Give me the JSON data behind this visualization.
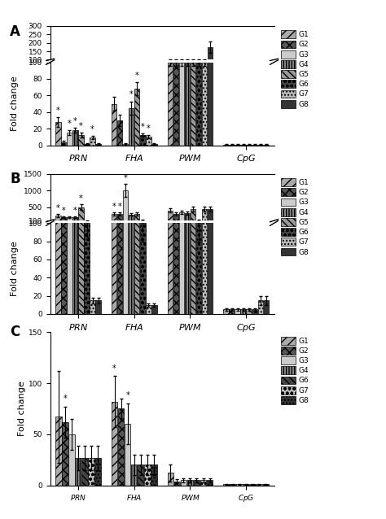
{
  "panel_A": {
    "stimuli": [
      "PRN",
      "FHA",
      "PWM",
      "CpG"
    ],
    "groups": [
      "G1",
      "G2",
      "G3",
      "G4",
      "G5",
      "G6",
      "G7",
      "G8"
    ],
    "values": {
      "PRN": [
        28,
        4,
        15,
        18,
        12,
        2,
        9,
        2
      ],
      "FHA": [
        50,
        30,
        2,
        45,
        68,
        12,
        10,
        2
      ],
      "PWM": [
        100,
        100,
        100,
        100,
        100,
        100,
        100,
        175
      ],
      "CpG": [
        1,
        1,
        1,
        1,
        1,
        1,
        1,
        1
      ]
    },
    "errors": {
      "PRN": [
        6,
        2,
        3,
        3,
        3,
        1,
        2,
        1
      ],
      "FHA": [
        8,
        7,
        1,
        8,
        8,
        2,
        2,
        1
      ],
      "PWM": [
        4,
        4,
        4,
        4,
        4,
        4,
        4,
        35
      ],
      "CpG": [
        0.5,
        0.5,
        0.5,
        0.5,
        0.5,
        0.5,
        0.5,
        0.5
      ]
    },
    "star": {
      "PRN": [
        1,
        0,
        1,
        1,
        1,
        0,
        1,
        0
      ],
      "FHA": [
        0,
        0,
        0,
        1,
        1,
        1,
        1,
        0
      ],
      "PWM": [
        0,
        0,
        0,
        0,
        0,
        0,
        0,
        0
      ],
      "CpG": [
        0,
        0,
        0,
        0,
        0,
        0,
        0,
        0
      ]
    },
    "ylim_low": [
      0,
      100
    ],
    "yticks_low": [
      0,
      20,
      40,
      60,
      80,
      100
    ],
    "ylim_high": [
      100,
      300
    ],
    "yticks_high": [
      100,
      150,
      200,
      250,
      300
    ]
  },
  "panel_B": {
    "stimuli": [
      "PRN",
      "FHA",
      "PWM",
      "CpG"
    ],
    "groups": [
      "G1",
      "G2",
      "G3",
      "G4",
      "G5",
      "G6",
      "G7",
      "G8"
    ],
    "values": {
      "PRN": [
        250,
        200,
        200,
        200,
        500,
        100,
        15,
        15
      ],
      "FHA": [
        300,
        300,
        1000,
        280,
        300,
        100,
        10,
        10
      ],
      "PWM": [
        400,
        300,
        350,
        330,
        450,
        100,
        450,
        450
      ],
      "CpG": [
        5,
        5,
        5,
        5,
        5,
        5,
        15,
        15
      ]
    },
    "errors": {
      "PRN": [
        40,
        30,
        30,
        30,
        80,
        15,
        3,
        3
      ],
      "FHA": [
        50,
        50,
        200,
        40,
        50,
        20,
        2,
        2
      ],
      "PWM": [
        60,
        50,
        50,
        50,
        70,
        20,
        70,
        70
      ],
      "CpG": [
        1,
        1,
        1,
        1,
        1,
        1,
        5,
        5
      ]
    },
    "star": {
      "PRN": [
        1,
        1,
        0,
        1,
        1,
        0,
        0,
        0
      ],
      "FHA": [
        1,
        1,
        1,
        0,
        0,
        0,
        0,
        0
      ],
      "PWM": [
        0,
        0,
        0,
        0,
        0,
        0,
        0,
        0
      ],
      "CpG": [
        0,
        0,
        0,
        0,
        0,
        0,
        0,
        0
      ]
    },
    "ylim_low": [
      0,
      100
    ],
    "yticks_low": [
      0,
      20,
      40,
      60,
      80,
      100
    ],
    "ylim_high": [
      100,
      1500
    ],
    "yticks_high": [
      100,
      500,
      1000,
      1500
    ]
  },
  "panel_C": {
    "stimuli": [
      "PRN",
      "FHA",
      "PWM",
      "CpG"
    ],
    "groups": [
      "G1",
      "G2",
      "G3",
      "G4",
      "G6",
      "G7",
      "G8"
    ],
    "values": {
      "PRN": [
        67,
        62,
        50,
        27,
        27,
        27,
        27
      ],
      "FHA": [
        82,
        75,
        60,
        20,
        20,
        20,
        20
      ],
      "PWM": [
        12,
        4,
        5,
        5,
        5,
        5,
        5
      ],
      "CpG": [
        1,
        1,
        1,
        1,
        1,
        1,
        1
      ]
    },
    "errors": {
      "PRN": [
        45,
        15,
        15,
        12,
        12,
        12,
        12
      ],
      "FHA": [
        25,
        10,
        20,
        10,
        10,
        10,
        10
      ],
      "PWM": [
        8,
        2,
        2,
        2,
        2,
        2,
        2
      ],
      "CpG": [
        0.5,
        0.5,
        0.5,
        0.5,
        0.5,
        0.5,
        0.5
      ]
    },
    "star": {
      "PRN": [
        0,
        1,
        0,
        0,
        0,
        0,
        0
      ],
      "FHA": [
        1,
        0,
        1,
        0,
        0,
        0,
        0
      ],
      "PWM": [
        0,
        0,
        0,
        0,
        0,
        0,
        0
      ],
      "CpG": [
        0,
        0,
        0,
        0,
        0,
        0,
        0
      ]
    },
    "ylim": [
      0,
      150
    ],
    "yticks": [
      0,
      50,
      100,
      150
    ]
  }
}
